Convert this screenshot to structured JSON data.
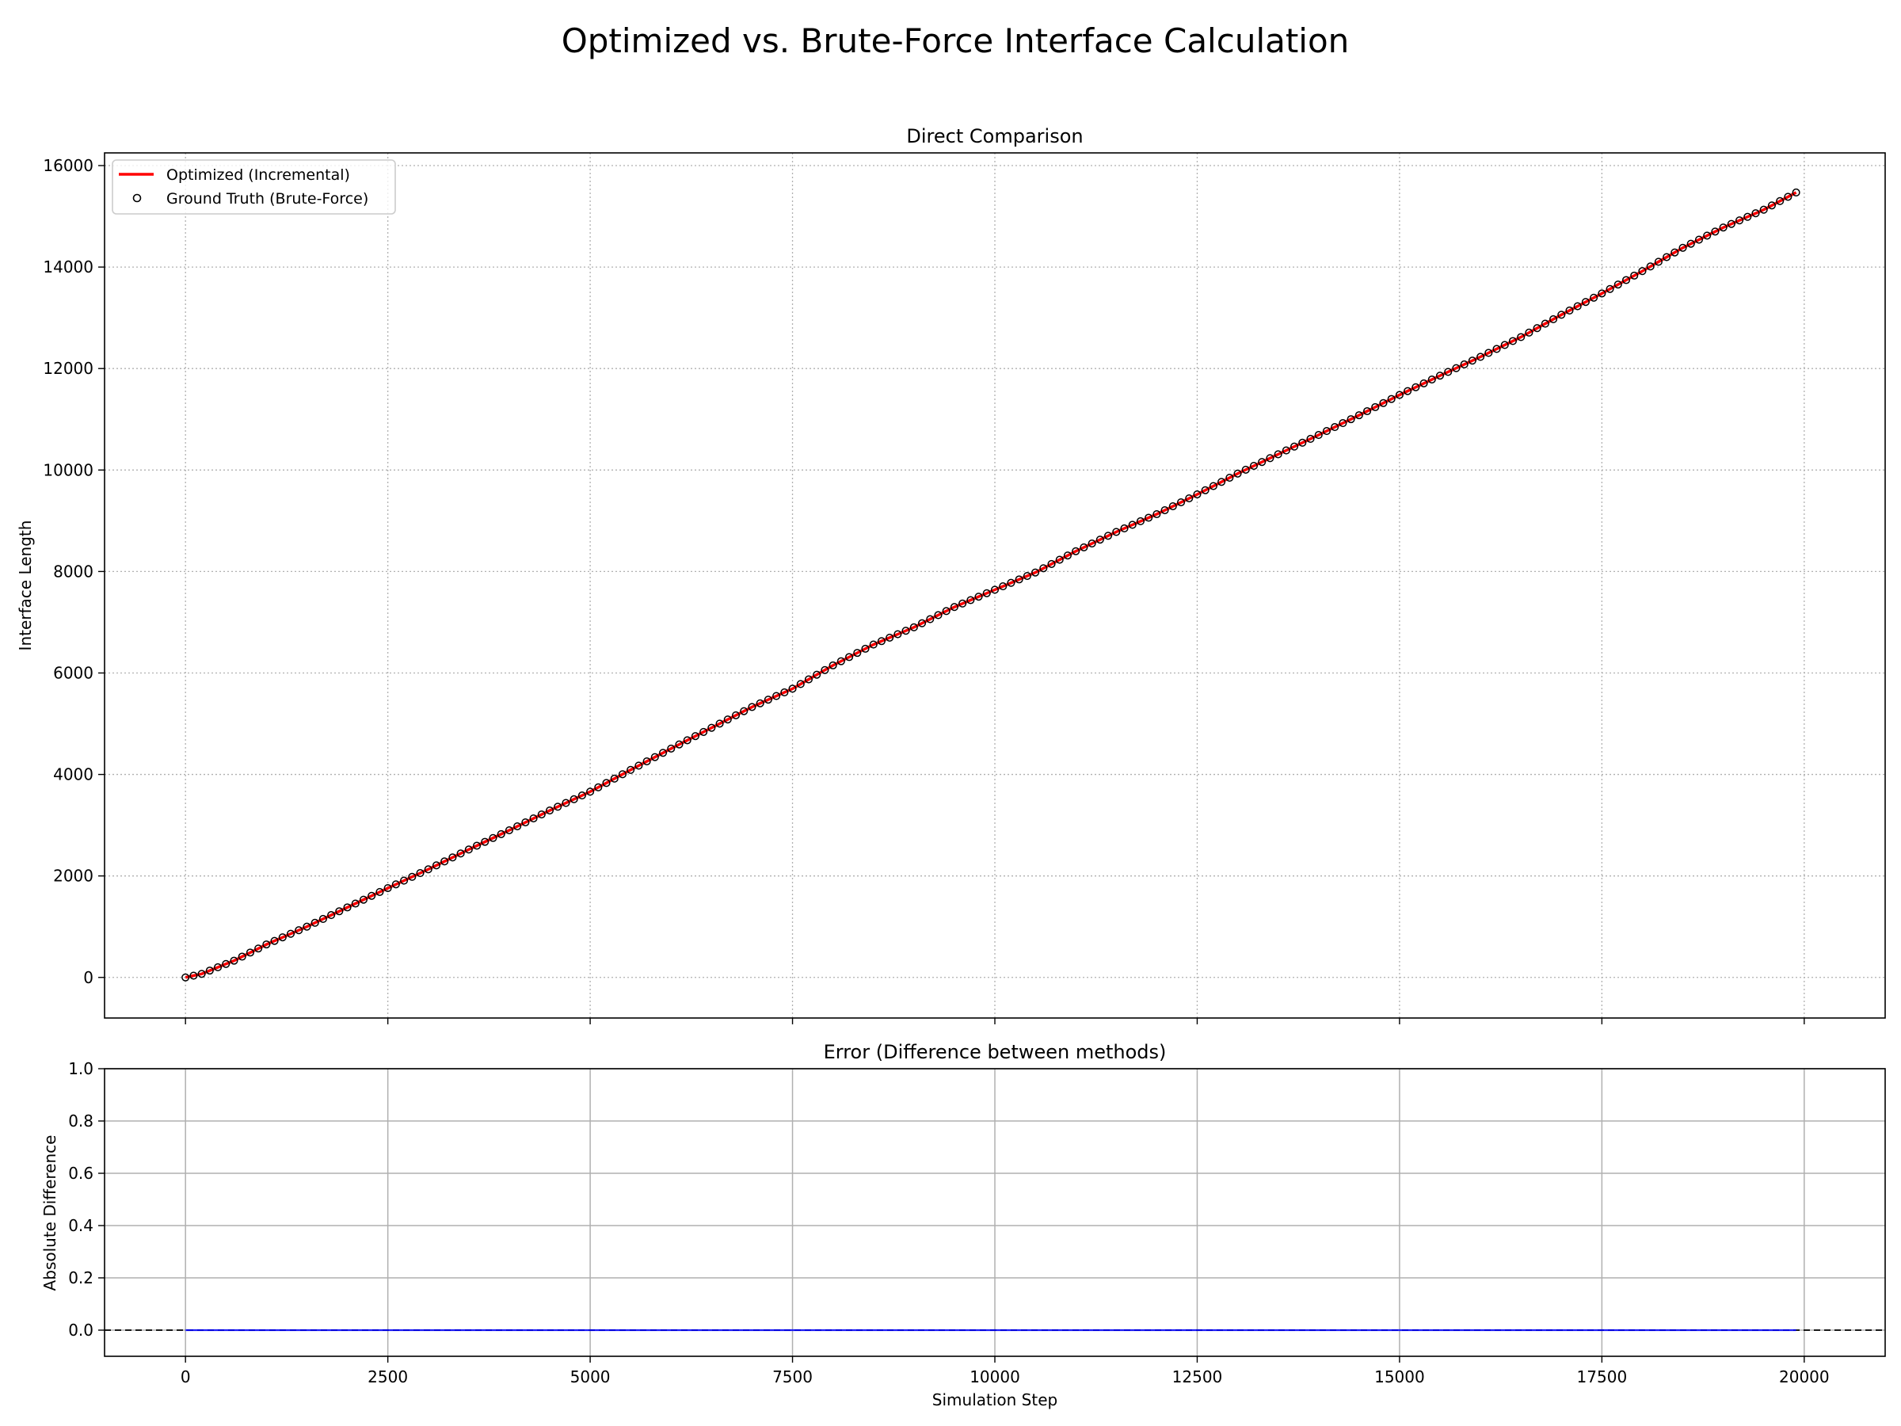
{
  "figure": {
    "title": "Optimized vs. Brute-Force Interface Calculation"
  },
  "chart_data": [
    {
      "type": "line",
      "title": "Direct Comparison",
      "xlabel": "",
      "ylabel": "Interface Length",
      "xlim": [
        -1000,
        21000
      ],
      "ylim": [
        -800,
        16250
      ],
      "xticks": [
        0,
        2500,
        5000,
        7500,
        10000,
        12500,
        15000,
        17500,
        20000
      ],
      "xticklabels_shown": false,
      "yticks": [
        0,
        2000,
        4000,
        6000,
        8000,
        10000,
        12000,
        14000,
        16000
      ],
      "grid": "dotted",
      "legend": "upper-left",
      "x_step": 100,
      "x": {
        "start": 0,
        "stop": 19900,
        "step": 100
      },
      "anchor_points": [
        [
          0,
          0
        ],
        [
          200,
          70
        ],
        [
          600,
          330
        ],
        [
          1000,
          650
        ],
        [
          1500,
          1000
        ],
        [
          2000,
          1380
        ],
        [
          2500,
          1760
        ],
        [
          3000,
          2130
        ],
        [
          3500,
          2520
        ],
        [
          4000,
          2900
        ],
        [
          4500,
          3290
        ],
        [
          5000,
          3660
        ],
        [
          5500,
          4090
        ],
        [
          6000,
          4510
        ],
        [
          6500,
          4920
        ],
        [
          7000,
          5330
        ],
        [
          7500,
          5690
        ],
        [
          8000,
          6150
        ],
        [
          8500,
          6560
        ],
        [
          9000,
          6900
        ],
        [
          9500,
          7300
        ],
        [
          10000,
          7640
        ],
        [
          10500,
          7980
        ],
        [
          11000,
          8400
        ],
        [
          11500,
          8780
        ],
        [
          12000,
          9130
        ],
        [
          12500,
          9520
        ],
        [
          13000,
          9930
        ],
        [
          13500,
          10310
        ],
        [
          14000,
          10690
        ],
        [
          14500,
          11080
        ],
        [
          15000,
          11480
        ],
        [
          15500,
          11860
        ],
        [
          16000,
          12230
        ],
        [
          16500,
          12620
        ],
        [
          17000,
          13060
        ],
        [
          17500,
          13480
        ],
        [
          18000,
          13920
        ],
        [
          18500,
          14380
        ],
        [
          19000,
          14780
        ],
        [
          19500,
          15130
        ],
        [
          19900,
          15470
        ]
      ],
      "series": [
        {
          "name": "Optimized (Incremental)",
          "style": "line",
          "color": "#ff0000"
        },
        {
          "name": "Ground Truth (Brute-Force)",
          "style": "markers",
          "marker": "open-circle",
          "color": "#000000",
          "marker_fill": "#ffffff"
        }
      ]
    },
    {
      "type": "line",
      "title": "Error (Difference between methods)",
      "xlabel": "Simulation Step",
      "ylabel": "Absolute Difference",
      "xlim": [
        -1000,
        21000
      ],
      "ylim": [
        -0.1,
        1.0
      ],
      "xticks": [
        0,
        2500,
        5000,
        7500,
        10000,
        12500,
        15000,
        17500,
        20000
      ],
      "yticks": [
        0.0,
        0.2,
        0.4,
        0.6,
        0.8,
        1.0
      ],
      "ytick_labels": [
        "0.0",
        "0.2",
        "0.4",
        "0.6",
        "0.8",
        "1.0"
      ],
      "grid": "solid",
      "reference_line": {
        "y": 0,
        "style": "dashed",
        "color": "#000000"
      },
      "series": [
        {
          "name": "",
          "style": "line",
          "color": "#0000ff",
          "x": {
            "start": 0,
            "stop": 19900
          },
          "value": 0
        }
      ]
    }
  ]
}
